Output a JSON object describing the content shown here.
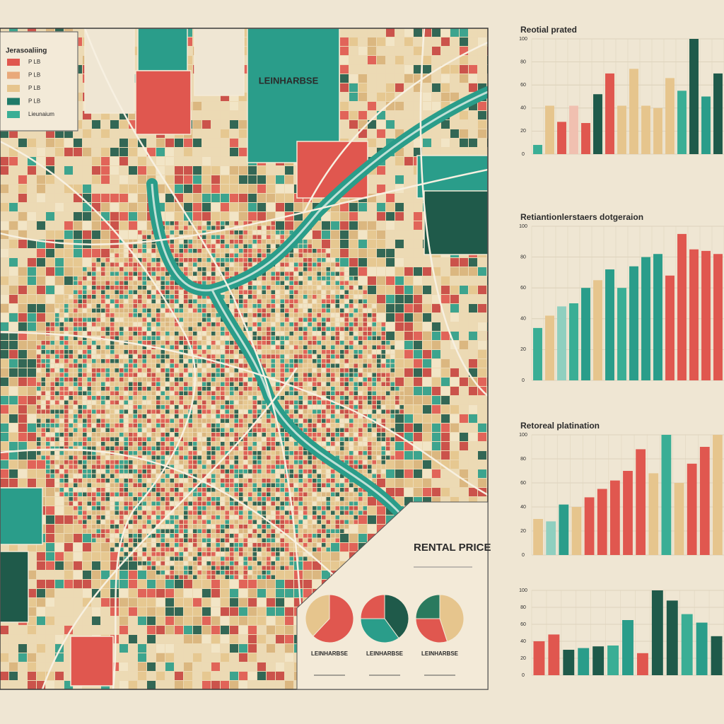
{
  "map": {
    "title": "LEINHARBSE",
    "legend": {
      "title": "Jerasoaliing",
      "items": [
        {
          "label": "P LB",
          "color": "#e0574f"
        },
        {
          "label": "P LB",
          "color": "#e9a97a"
        },
        {
          "label": "P LB",
          "color": "#e6c58d"
        },
        {
          "label": "P LB",
          "color": "#1f7a68"
        },
        {
          "label": "Lieunaium",
          "color": "#3aae95"
        }
      ]
    },
    "panel": {
      "title": "RENTAL PRICE",
      "pies": [
        {
          "label": "LEINHARBSE",
          "values": [
            62,
            38
          ],
          "colors": [
            "#e0574f",
            "#e6c58d"
          ]
        },
        {
          "label": "LEINHARBSE",
          "values": [
            40,
            35,
            25
          ],
          "colors": [
            "#1f5a4a",
            "#2a9d8a",
            "#e0574f"
          ]
        },
        {
          "label": "LEINHARBSE",
          "values": [
            45,
            30,
            25
          ],
          "colors": [
            "#e6c58d",
            "#e0574f",
            "#2a7a5e"
          ]
        }
      ]
    }
  },
  "chart_data": [
    {
      "type": "bar",
      "title": "Reotial prated",
      "ylim": [
        0,
        100
      ],
      "yticks": [
        0,
        20,
        40,
        60,
        80,
        100
      ],
      "values": [
        8,
        42,
        28,
        42,
        27,
        52,
        70,
        42,
        74,
        42,
        40,
        66,
        55,
        100,
        50,
        70
      ],
      "colors": [
        "#3aae95",
        "#e6c58d",
        "#e0574f",
        "#f0c0b0",
        "#e0574f",
        "#1f5a4a",
        "#e0574f",
        "#e6c58d",
        "#e6c58d",
        "#e6c58d",
        "#e6c58d",
        "#e6c58d",
        "#3aae95",
        "#1f5a4a",
        "#2a9d8a",
        "#1f5a4a"
      ]
    },
    {
      "type": "bar",
      "title": "Retiantionlerstaers dotgeraion",
      "ylim": [
        0,
        100
      ],
      "yticks": [
        0,
        20,
        40,
        60,
        80,
        100
      ],
      "values": [
        34,
        42,
        48,
        50,
        60,
        65,
        72,
        60,
        74,
        80,
        82,
        68,
        95,
        85,
        84,
        82
      ],
      "colors": [
        "#3aae95",
        "#e6c58d",
        "#8fcfbf",
        "#3aae95",
        "#2a9d8a",
        "#e6c58d",
        "#2a9d8a",
        "#3aae95",
        "#2a9d8a",
        "#2a9d8a",
        "#2a9d8a",
        "#e0574f",
        "#e0574f",
        "#e0574f",
        "#e0574f",
        "#e0574f"
      ]
    },
    {
      "type": "bar",
      "title": "Retoreal platination",
      "ylim": [
        0,
        100
      ],
      "yticks": [
        0,
        20,
        40,
        60,
        80,
        100
      ],
      "values": [
        30,
        28,
        42,
        40,
        48,
        55,
        62,
        70,
        88,
        68,
        100,
        60,
        76,
        90,
        100
      ],
      "colors": [
        "#e6c58d",
        "#8fcfbf",
        "#2a9d8a",
        "#e6c58d",
        "#e0574f",
        "#e0574f",
        "#e0574f",
        "#e0574f",
        "#e0574f",
        "#e6c58d",
        "#3aae95",
        "#e6c58d",
        "#e0574f",
        "#e0574f",
        "#e6c58d"
      ]
    },
    {
      "type": "bar",
      "title": "",
      "ylim": [
        0,
        100
      ],
      "yticks": [
        0,
        20,
        40,
        60,
        80,
        100
      ],
      "values": [
        40,
        48,
        30,
        32,
        34,
        35,
        65,
        26,
        100,
        88,
        72,
        62,
        46
      ],
      "colors": [
        "#e0574f",
        "#e0574f",
        "#1f5a4a",
        "#2a9d8a",
        "#1f5a4a",
        "#3aae95",
        "#2a9d8a",
        "#e0574f",
        "#1f5a4a",
        "#1f5a4a",
        "#3aae95",
        "#2a9d8a",
        "#1f5a4a"
      ]
    }
  ]
}
